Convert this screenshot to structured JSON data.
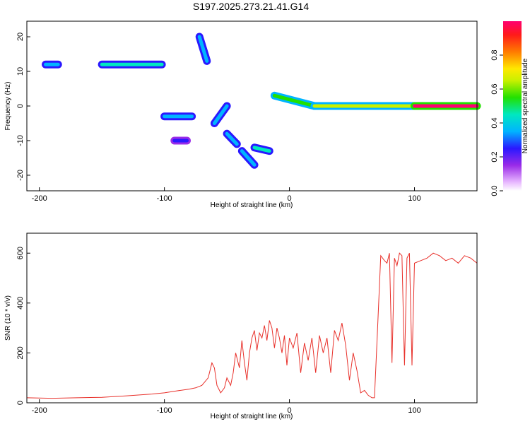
{
  "title": "S197.2025.273.21.41.G14",
  "chart_data": [
    {
      "type": "heatmap",
      "xlabel": "Height of straight line (km)",
      "ylabel": "Frequency (Hz)",
      "xlim": [
        -210,
        150
      ],
      "ylim": [
        -24.5,
        24.5
      ],
      "xticks": [
        -200,
        -100,
        0,
        100
      ],
      "yticks": [
        -20,
        -10,
        0,
        10,
        20
      ],
      "colorbar": {
        "label": "Normalized spectral amplitude",
        "range": [
          0,
          1
        ],
        "ticks": [
          0.0,
          0.2,
          0.4,
          0.6,
          0.8
        ]
      },
      "features": [
        {
          "name": "segment",
          "x": [
            -195,
            -185
          ],
          "y": [
            12,
            12
          ],
          "amplitude": 0.3
        },
        {
          "name": "segment",
          "x": [
            -150,
            -102
          ],
          "y": [
            12,
            12
          ],
          "amplitude": 0.45
        },
        {
          "name": "segment",
          "x": [
            -100,
            -78
          ],
          "y": [
            -3,
            -3
          ],
          "amplitude": 0.35
        },
        {
          "name": "segment",
          "x": [
            -92,
            -82
          ],
          "y": [
            -10,
            -10
          ],
          "amplitude": 0.25
        },
        {
          "name": "segment",
          "x": [
            -72,
            -66
          ],
          "y": [
            20,
            13
          ],
          "amplitude": 0.3
        },
        {
          "name": "segment",
          "x": [
            -60,
            -50
          ],
          "y": [
            -5,
            0
          ],
          "amplitude": 0.35
        },
        {
          "name": "segment",
          "x": [
            -50,
            -42
          ],
          "y": [
            -8,
            -11
          ],
          "amplitude": 0.3
        },
        {
          "name": "segment",
          "x": [
            -38,
            -28
          ],
          "y": [
            -13,
            -17
          ],
          "amplitude": 0.35
        },
        {
          "name": "segment",
          "x": [
            -28,
            -16
          ],
          "y": [
            -12,
            -13
          ],
          "amplitude": 0.45
        },
        {
          "name": "segment",
          "x": [
            -12,
            20
          ],
          "y": [
            3,
            0
          ],
          "amplitude": 0.5
        },
        {
          "name": "segment",
          "x": [
            20,
            100
          ],
          "y": [
            0,
            0
          ],
          "amplitude": 0.6
        },
        {
          "name": "segment",
          "x": [
            100,
            150
          ],
          "y": [
            0,
            0
          ],
          "amplitude": 0.95
        }
      ]
    },
    {
      "type": "line",
      "xlabel": "Height of straight line (km)",
      "ylabel": "SNR (10 * v/v)",
      "xlim": [
        -210,
        150
      ],
      "ylim": [
        0,
        680
      ],
      "xticks": [
        -200,
        -100,
        0,
        100
      ],
      "yticks": [
        0,
        200,
        400,
        600
      ],
      "color": "#e8302a",
      "series": [
        {
          "x": [
            -210,
            -190,
            -170,
            -150,
            -130,
            -110,
            -100,
            -90,
            -80,
            -75,
            -70,
            -65,
            -62,
            -60,
            -58,
            -55,
            -52,
            -50,
            -47,
            -45,
            -43,
            -40,
            -38,
            -36,
            -34,
            -32,
            -30,
            -28,
            -26,
            -24,
            -22,
            -20,
            -18,
            -16,
            -14,
            -12,
            -10,
            -8,
            -6,
            -4,
            -2,
            0,
            3,
            6,
            9,
            12,
            15,
            18,
            21,
            24,
            27,
            30,
            33,
            36,
            39,
            42,
            45,
            48,
            51,
            54,
            57,
            60,
            63,
            66,
            68,
            70,
            73,
            76,
            78,
            80,
            82,
            84,
            86,
            88,
            90,
            92,
            94,
            96,
            98,
            100,
            105,
            110,
            115,
            120,
            125,
            130,
            135,
            140,
            145,
            150
          ],
          "y": [
            20,
            18,
            20,
            22,
            28,
            35,
            40,
            48,
            55,
            60,
            70,
            100,
            160,
            140,
            70,
            40,
            60,
            100,
            70,
            120,
            200,
            140,
            250,
            160,
            90,
            200,
            260,
            290,
            210,
            280,
            260,
            310,
            250,
            330,
            300,
            220,
            300,
            260,
            200,
            270,
            150,
            260,
            220,
            280,
            120,
            240,
            170,
            260,
            120,
            270,
            200,
            260,
            120,
            290,
            250,
            320,
            230,
            90,
            200,
            130,
            40,
            50,
            30,
            20,
            20,
            240,
            590,
            570,
            560,
            600,
            160,
            580,
            550,
            600,
            590,
            150,
            580,
            600,
            150,
            560,
            570,
            580,
            600,
            590,
            570,
            580,
            560,
            590,
            580,
            560
          ]
        }
      ]
    }
  ]
}
